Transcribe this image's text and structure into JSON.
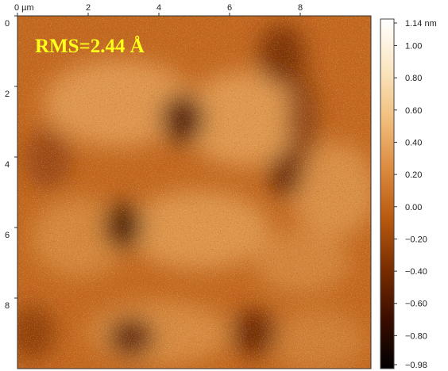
{
  "annotation": "RMS=2.44 Å",
  "x_axis": {
    "ticks": [
      {
        "value": 0,
        "label": "0 µm"
      },
      {
        "value": 2,
        "label": "2"
      },
      {
        "value": 4,
        "label": "4"
      },
      {
        "value": 6,
        "label": "6"
      },
      {
        "value": 8,
        "label": "8"
      }
    ],
    "range": [
      0,
      10
    ]
  },
  "y_axis": {
    "ticks": [
      {
        "value": 0,
        "label": "0"
      },
      {
        "value": 2,
        "label": "2"
      },
      {
        "value": 4,
        "label": "4"
      },
      {
        "value": 6,
        "label": "6"
      },
      {
        "value": 8,
        "label": "8"
      }
    ],
    "range": [
      0,
      10
    ]
  },
  "colorbar": {
    "min": -0.98,
    "max": 1.14,
    "unit": "nm",
    "ticks": [
      {
        "value": 1.14,
        "label": "1.14 nm"
      },
      {
        "value": 1.0,
        "label": "1.00"
      },
      {
        "value": 0.8,
        "label": "0.80"
      },
      {
        "value": 0.6,
        "label": "0.60"
      },
      {
        "value": 0.4,
        "label": "0.40"
      },
      {
        "value": 0.2,
        "label": "0.20"
      },
      {
        "value": 0.0,
        "label": "0.00"
      },
      {
        "value": -0.2,
        "label": "−0.20"
      },
      {
        "value": -0.4,
        "label": "−0.40"
      },
      {
        "value": -0.6,
        "label": "−0.60"
      },
      {
        "value": -0.8,
        "label": "−0.80"
      },
      {
        "value": -0.98,
        "label": "−0.98"
      }
    ],
    "colors": [
      "#000000",
      "#3a0d00",
      "#7a2e00",
      "#b8590e",
      "#dc8a3e",
      "#f1bf7c",
      "#fbe6c2",
      "#ffffff"
    ]
  }
}
